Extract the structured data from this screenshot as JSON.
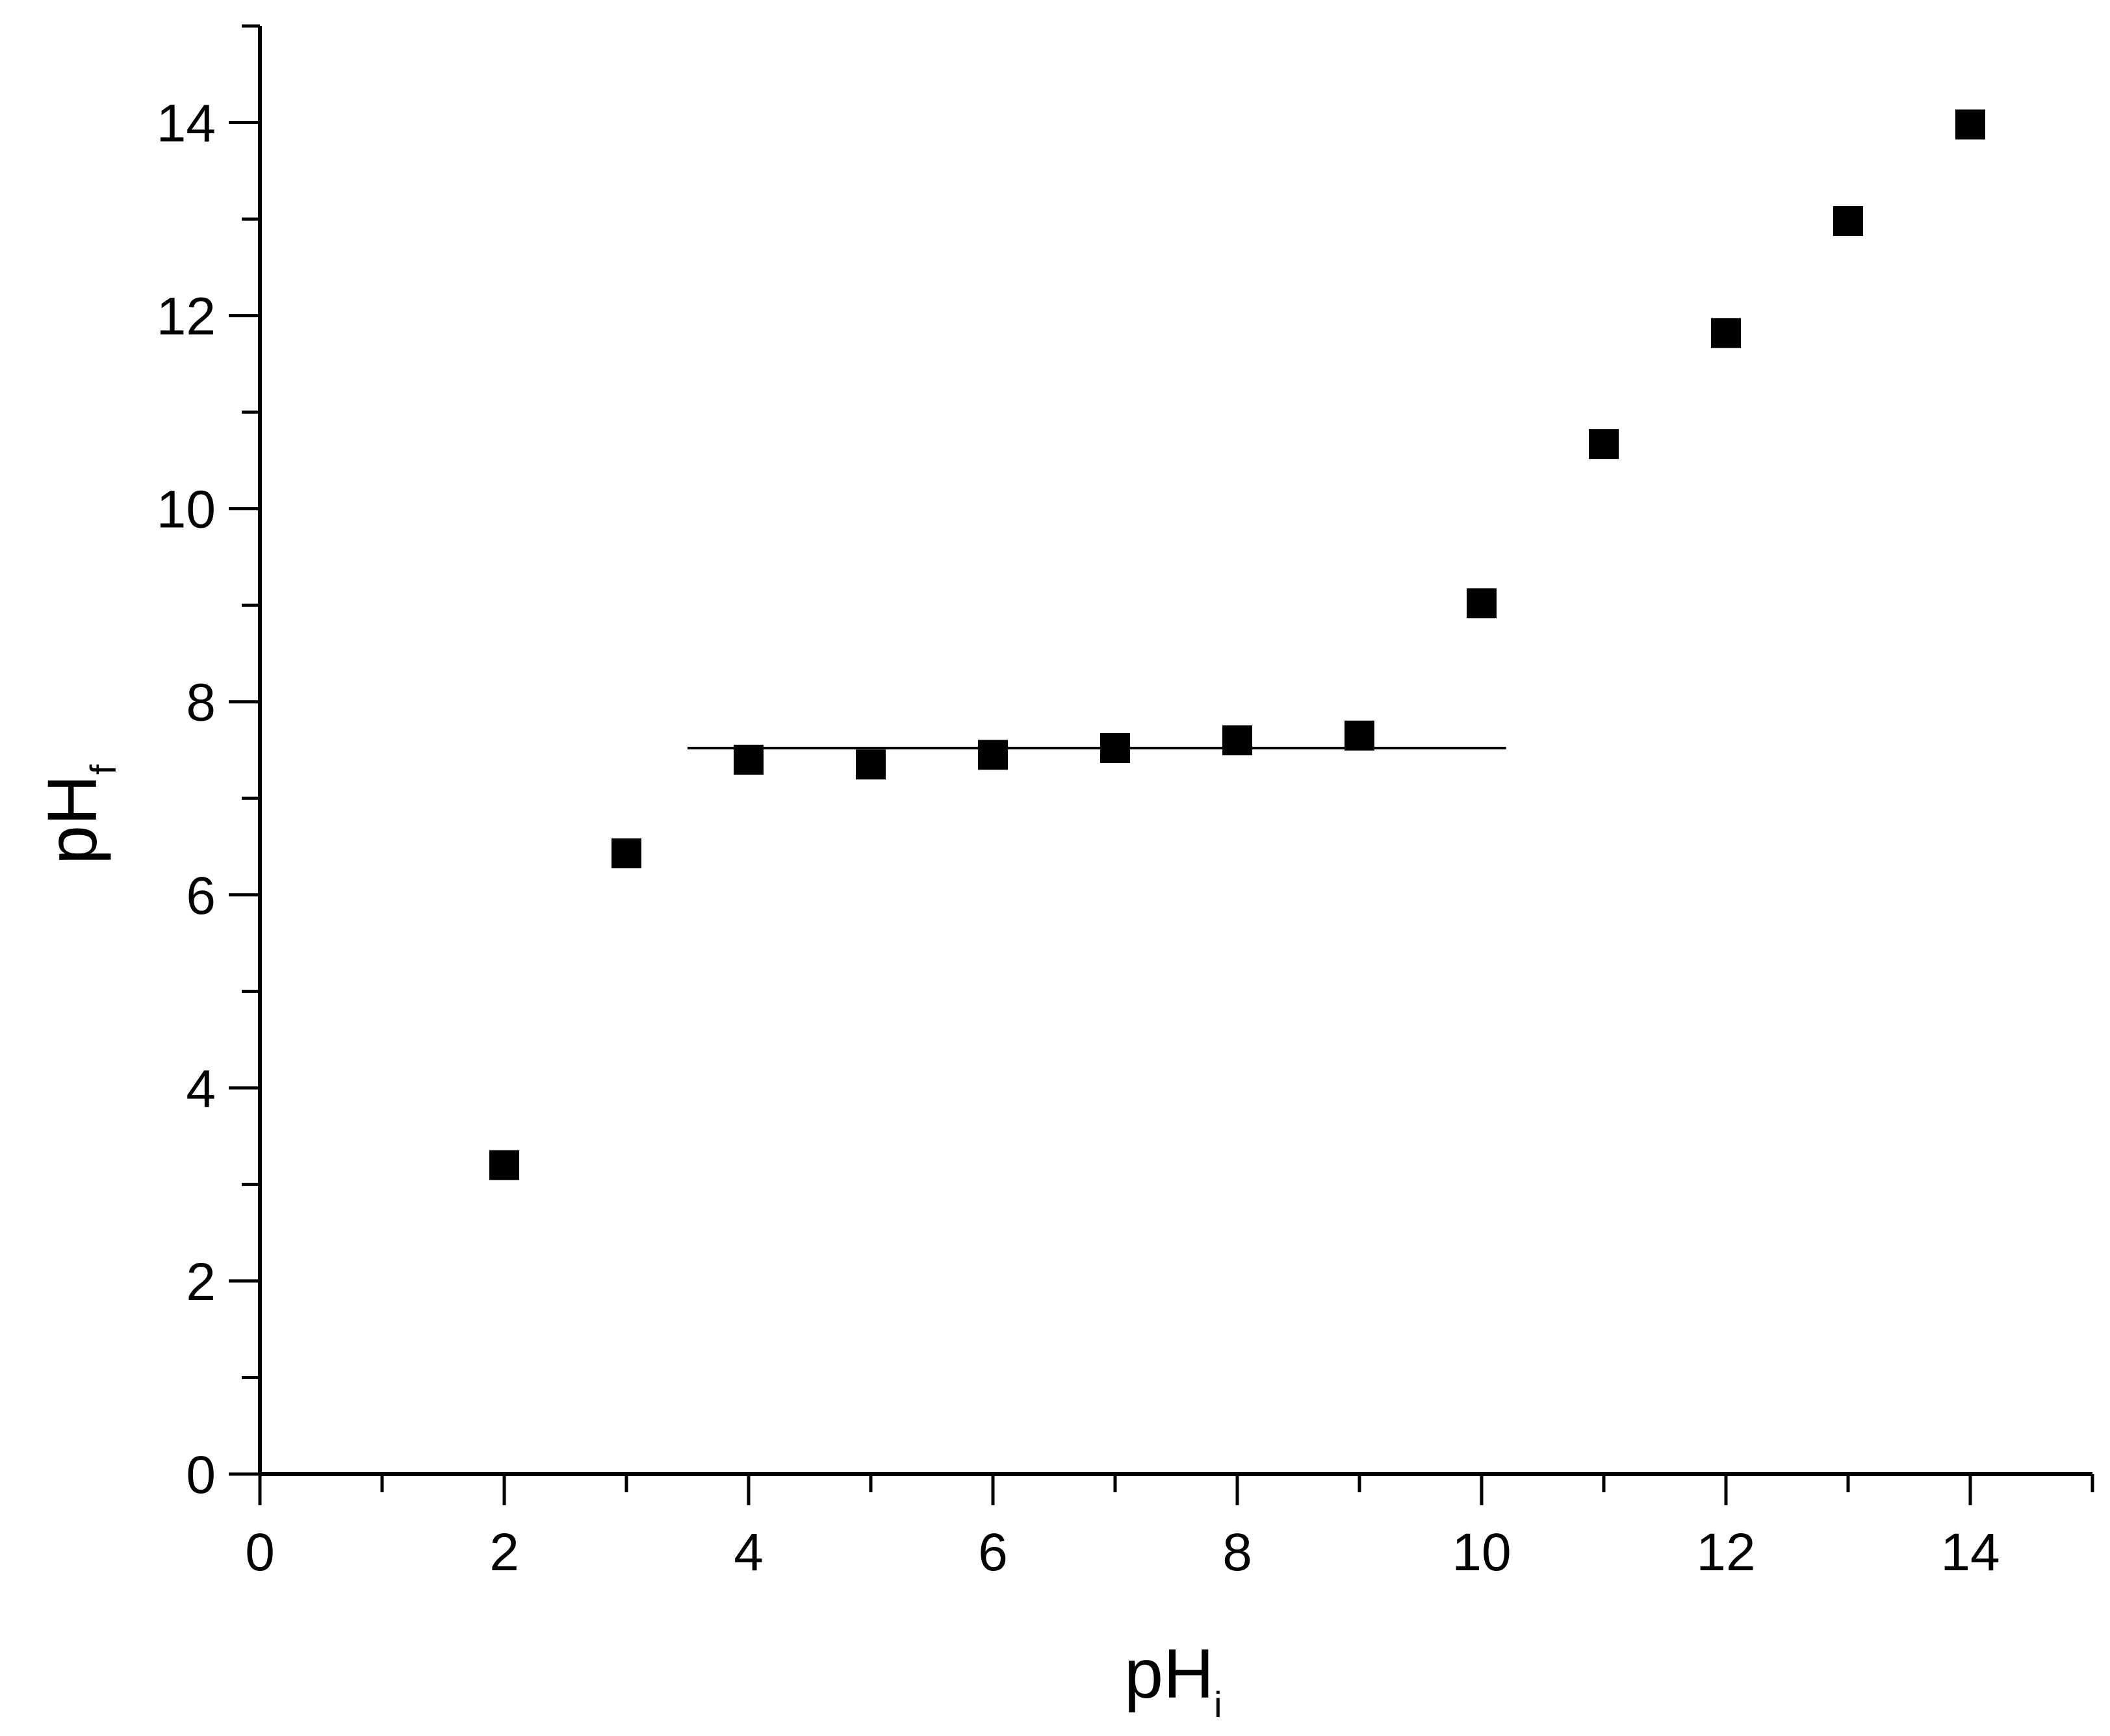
{
  "chart_data": {
    "type": "scatter",
    "xlabel": "pH",
    "xlabel_subscript": "i",
    "ylabel": "pH",
    "ylabel_subscript": "f",
    "xlim": [
      0,
      15
    ],
    "ylim": [
      0,
      15
    ],
    "x_major_ticks": [
      0,
      2,
      4,
      6,
      8,
      10,
      12,
      14
    ],
    "y_major_ticks": [
      0,
      2,
      4,
      6,
      8,
      10,
      12,
      14
    ],
    "grid": false,
    "legend": "none",
    "marker": "filled-square",
    "color": "#000000",
    "series": [
      {
        "points": [
          {
            "x": 2.0,
            "y": 3.2
          },
          {
            "x": 3.0,
            "y": 6.43
          },
          {
            "x": 4.0,
            "y": 7.4
          },
          {
            "x": 5.0,
            "y": 7.35
          },
          {
            "x": 6.0,
            "y": 7.45
          },
          {
            "x": 7.0,
            "y": 7.52
          },
          {
            "x": 8.0,
            "y": 7.6
          },
          {
            "x": 9.0,
            "y": 7.65
          },
          {
            "x": 10.0,
            "y": 9.02
          },
          {
            "x": 11.0,
            "y": 10.67
          },
          {
            "x": 12.0,
            "y": 11.82
          },
          {
            "x": 13.0,
            "y": 12.98
          },
          {
            "x": 14.0,
            "y": 13.98
          }
        ]
      }
    ],
    "reference_line": {
      "y": 7.52,
      "x_start": 3.5,
      "x_end": 10.2
    }
  }
}
